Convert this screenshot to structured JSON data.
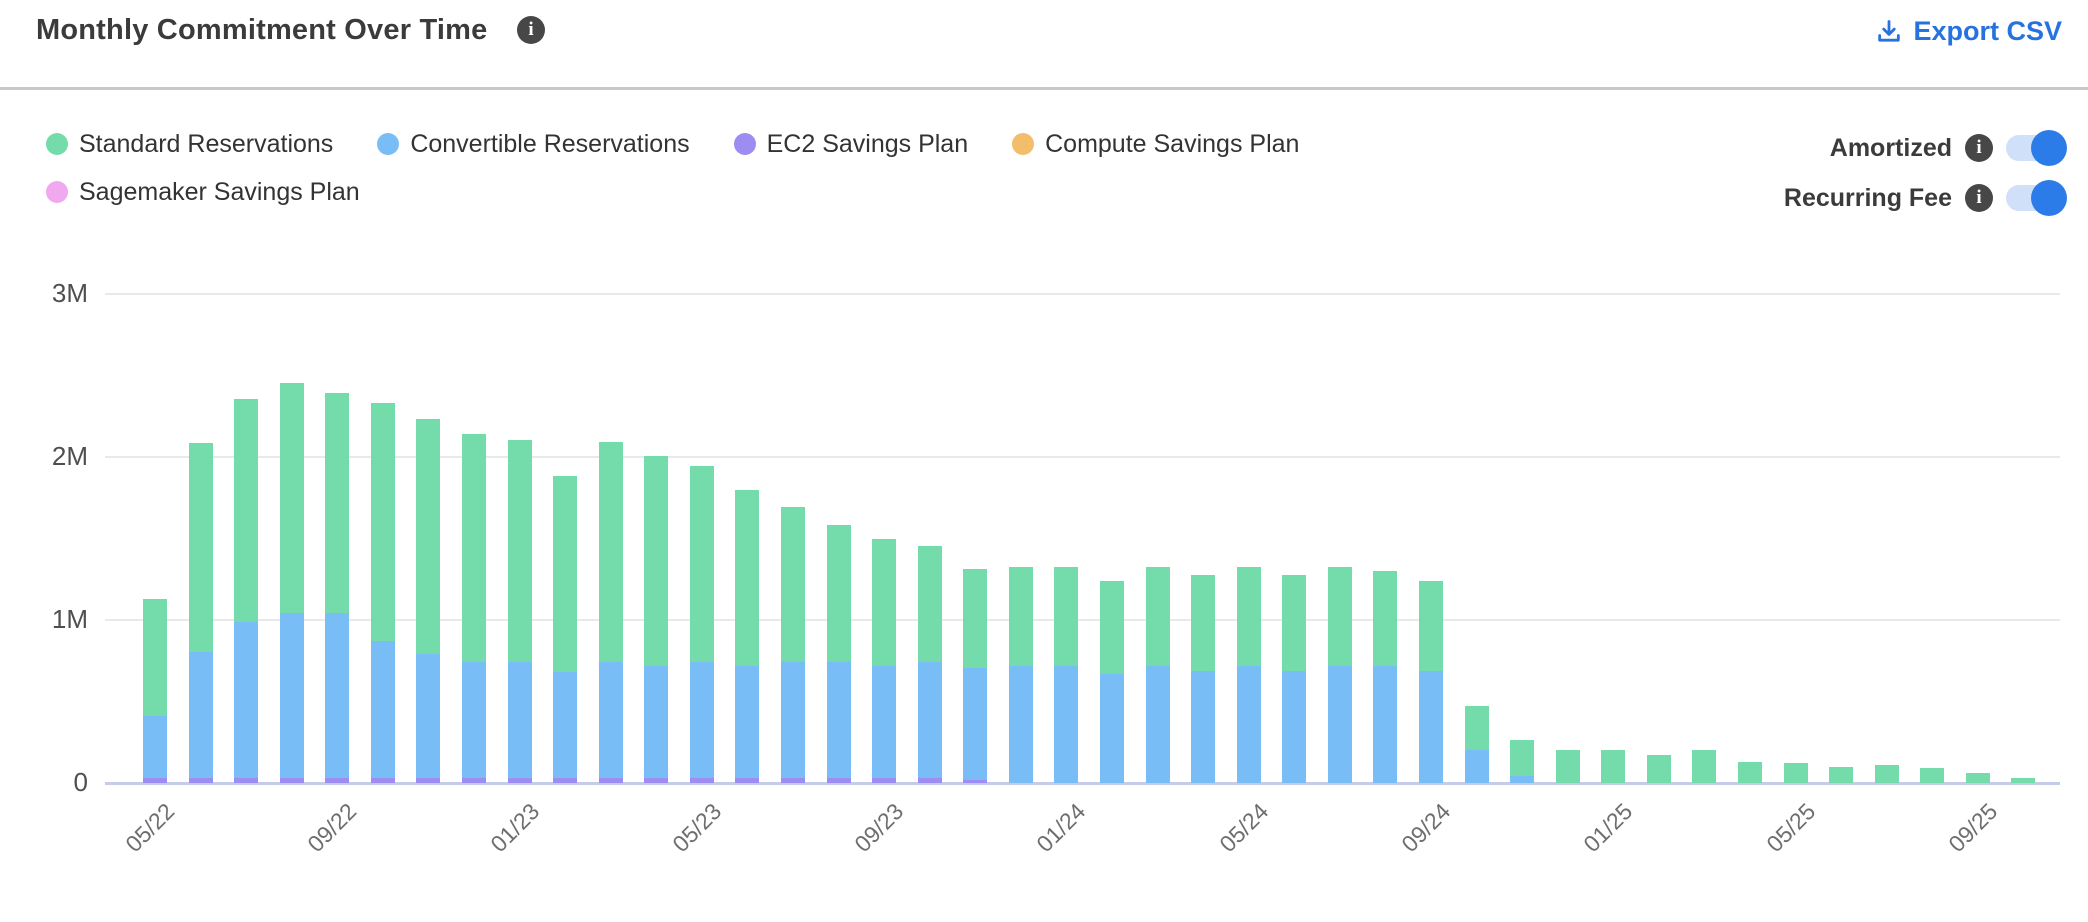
{
  "header": {
    "title": "Monthly Commitment Over Time",
    "export_label": "Export CSV",
    "export_color": "#2673e0"
  },
  "toggles": [
    {
      "label": "Amortized",
      "on": true
    },
    {
      "label": "Recurring Fee",
      "on": true
    }
  ],
  "toggle_colors": {
    "track": "#cfe0f8",
    "knob": "#2b7ce9"
  },
  "chart_data": {
    "type": "bar",
    "stacked": true,
    "title": "Monthly Commitment Over Time",
    "xlabel": "",
    "ylabel": "",
    "ylim": [
      0,
      3
    ],
    "y_ticks": [
      {
        "label": "0",
        "value": 0
      },
      {
        "label": "1M",
        "value": 1
      },
      {
        "label": "2M",
        "value": 2
      },
      {
        "label": "3M",
        "value": 3
      }
    ],
    "x_tick_every": 4,
    "grid": "horizontal",
    "legend_position": "top-left",
    "units": "M",
    "categories": [
      "05/22",
      "06/22",
      "07/22",
      "08/22",
      "09/22",
      "10/22",
      "11/22",
      "12/22",
      "01/23",
      "02/23",
      "03/23",
      "04/23",
      "05/23",
      "06/23",
      "07/23",
      "08/23",
      "09/23",
      "10/23",
      "11/23",
      "12/23",
      "01/24",
      "02/24",
      "03/24",
      "04/24",
      "05/24",
      "06/24",
      "07/24",
      "08/24",
      "09/24",
      "10/24",
      "11/24",
      "12/24",
      "01/25",
      "02/25",
      "03/25",
      "04/25",
      "05/25",
      "06/25",
      "07/25",
      "08/25",
      "09/25",
      "10/25"
    ],
    "series": [
      {
        "name": "Standard Reservations",
        "color": "#74dcab",
        "values": [
          0.72,
          1.28,
          1.37,
          1.41,
          1.35,
          1.46,
          1.44,
          1.4,
          1.36,
          1.2,
          1.35,
          1.29,
          1.2,
          1.08,
          0.95,
          0.84,
          0.78,
          0.71,
          0.61,
          0.61,
          0.61,
          0.57,
          0.61,
          0.59,
          0.61,
          0.59,
          0.61,
          0.58,
          0.55,
          0.27,
          0.22,
          0.2,
          0.2,
          0.17,
          0.2,
          0.13,
          0.12,
          0.1,
          0.11,
          0.09,
          0.06,
          0.03
        ]
      },
      {
        "name": "Convertible Reservations",
        "color": "#79bdf6",
        "values": [
          0.38,
          0.77,
          0.96,
          1.01,
          1.01,
          0.84,
          0.76,
          0.71,
          0.71,
          0.65,
          0.71,
          0.69,
          0.71,
          0.69,
          0.71,
          0.71,
          0.69,
          0.71,
          0.69,
          0.72,
          0.72,
          0.67,
          0.72,
          0.69,
          0.72,
          0.69,
          0.72,
          0.72,
          0.69,
          0.2,
          0.04,
          0,
          0,
          0,
          0,
          0,
          0,
          0,
          0,
          0,
          0,
          0
        ]
      },
      {
        "name": "EC2 Savings Plan",
        "color": "#9d8cf2",
        "values": [
          0.03,
          0.03,
          0.03,
          0.03,
          0.03,
          0.03,
          0.03,
          0.03,
          0.03,
          0.03,
          0.03,
          0.03,
          0.03,
          0.03,
          0.03,
          0.03,
          0.03,
          0.03,
          0.02,
          0,
          0,
          0,
          0,
          0,
          0,
          0,
          0,
          0,
          0,
          0,
          0,
          0,
          0,
          0,
          0,
          0,
          0,
          0,
          0,
          0,
          0,
          0
        ]
      },
      {
        "name": "Compute Savings Plan",
        "color": "#f2be6b",
        "values": [
          0,
          0,
          0,
          0,
          0,
          0,
          0,
          0,
          0,
          0,
          0,
          0,
          0,
          0,
          0,
          0,
          0,
          0,
          0,
          0,
          0,
          0,
          0,
          0,
          0,
          0,
          0,
          0,
          0,
          0,
          0,
          0,
          0,
          0,
          0,
          0,
          0,
          0,
          0,
          0,
          0,
          0
        ]
      },
      {
        "name": "Sagemaker Savings Plan",
        "color": "#f0a9ee",
        "values": [
          0,
          0,
          0,
          0,
          0,
          0,
          0,
          0,
          0,
          0,
          0,
          0,
          0,
          0,
          0,
          0,
          0,
          0,
          0,
          0,
          0,
          0,
          0,
          0,
          0,
          0,
          0,
          0,
          0,
          0,
          0,
          0,
          0,
          0,
          0,
          0,
          0,
          0,
          0,
          0,
          0,
          0
        ]
      }
    ]
  }
}
